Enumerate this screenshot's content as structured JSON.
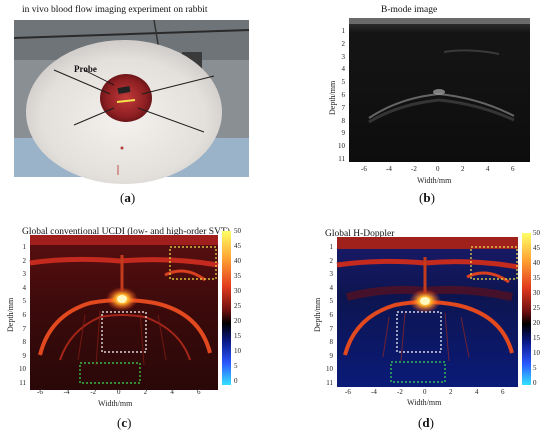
{
  "figure": {
    "panels": [
      {
        "id": "a",
        "title": "in vivo blood flow imaging experiment on rabbit",
        "annotation": "Probe",
        "caption": "a"
      },
      {
        "id": "b",
        "title": "B-mode image",
        "xlabel": "Width/mm",
        "ylabel": "Depth/mm",
        "xticks": [
          "-6",
          "-4",
          "-2",
          "0",
          "2",
          "4",
          "6"
        ],
        "yticks": [
          "1",
          "2",
          "3",
          "4",
          "5",
          "6",
          "7",
          "8",
          "9",
          "10",
          "11"
        ],
        "caption": "b"
      },
      {
        "id": "c",
        "title": "Global conventional UCDI (low- and high-order SVT)",
        "xlabel": "Width/mm",
        "ylabel": "Depth/mm",
        "xticks": [
          "-6",
          "-4",
          "-2",
          "0",
          "2",
          "4",
          "6"
        ],
        "yticks": [
          "1",
          "2",
          "3",
          "4",
          "5",
          "6",
          "7",
          "8",
          "9",
          "10",
          "11"
        ],
        "colorbar_ticks": [
          "50",
          "45",
          "40",
          "35",
          "30",
          "25",
          "20",
          "15",
          "10",
          "5",
          "0"
        ],
        "caption": "c"
      },
      {
        "id": "d",
        "title": "Global H-Doppler",
        "xlabel": "Width/mm",
        "ylabel": "Depth/mm",
        "xticks": [
          "-6",
          "-4",
          "-2",
          "0",
          "2",
          "4",
          "6"
        ],
        "yticks": [
          "1",
          "2",
          "3",
          "4",
          "5",
          "6",
          "7",
          "8",
          "9",
          "10",
          "11"
        ],
        "colorbar_ticks": [
          "50",
          "45",
          "40",
          "35",
          "30",
          "25",
          "20",
          "15",
          "10",
          "5",
          "0"
        ],
        "caption": "d"
      }
    ],
    "colors": {
      "roi_yellow": "#f2e14a",
      "roi_white": "#ffffff",
      "roi_green": "#3ddc4a"
    }
  }
}
